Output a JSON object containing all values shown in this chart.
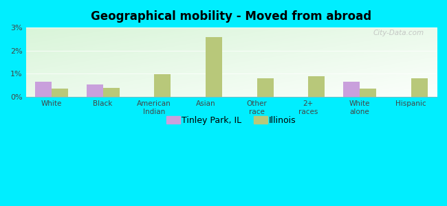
{
  "title": "Geographical mobility - Moved from abroad",
  "categories": [
    "White",
    "Black",
    "American\nIndian",
    "Asian",
    "Other\nrace",
    "2+\nraces",
    "White\nalone",
    "Hispanic"
  ],
  "tinley_values": [
    0.65,
    0.55,
    0.0,
    0.0,
    0.0,
    0.0,
    0.65,
    0.0
  ],
  "illinois_values": [
    0.35,
    0.4,
    0.97,
    2.58,
    0.82,
    0.88,
    0.35,
    0.8
  ],
  "tinley_color": "#c9a0dc",
  "illinois_color": "#b8c87a",
  "outer_bg": "#00eeff",
  "ylim": [
    0,
    3.0
  ],
  "yticks": [
    0,
    1,
    2,
    3
  ],
  "ytick_labels": [
    "0%",
    "1%",
    "2%",
    "3%"
  ],
  "bar_width": 0.32,
  "legend_tinley": "Tinley Park, IL",
  "legend_illinois": "Illinois",
  "watermark": "City-Data.com"
}
